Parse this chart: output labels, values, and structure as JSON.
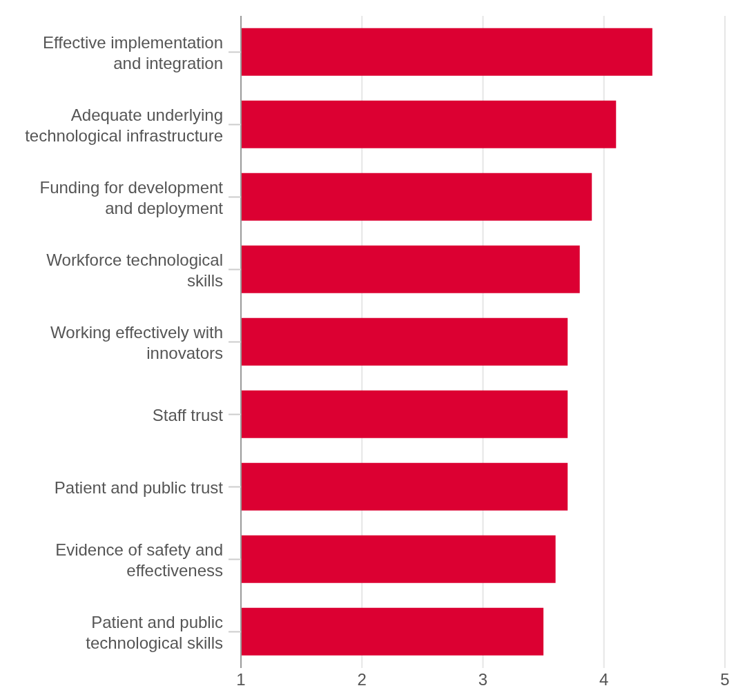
{
  "chart_data": {
    "type": "bar",
    "orientation": "horizontal",
    "categories": [
      "Effective implementation and integration",
      "Adequate underlying technological infrastructure",
      "Funding for development and deployment",
      "Workforce technological skills",
      "Working effectively with innovators",
      "Staff trust",
      "Patient and public trust",
      "Evidence of safety and effectiveness",
      "Patient and public technological skills"
    ],
    "values": [
      4.4,
      4.1,
      3.9,
      3.8,
      3.7,
      3.7,
      3.7,
      3.6,
      3.5
    ],
    "color": "#dc0032",
    "xlim": [
      1,
      5
    ],
    "xticks": [
      1,
      2,
      3,
      4,
      5
    ],
    "grid": "x"
  }
}
